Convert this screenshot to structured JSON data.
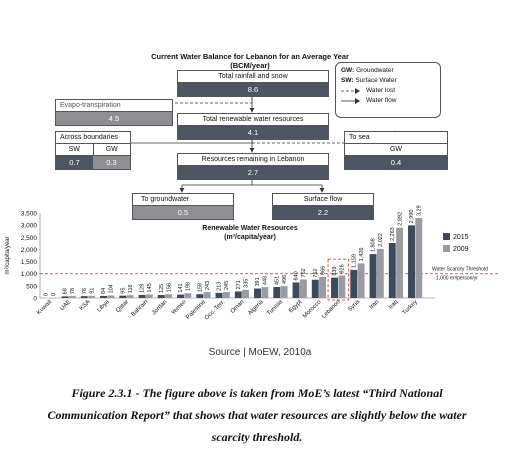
{
  "diagram": {
    "title_line1": "Current Water Balance for Lebanon for an Average Year",
    "title_line2": "(BCM/year)",
    "total_rainfall": {
      "label": "Total rainfall and snow",
      "value": "8.6"
    },
    "evapo": {
      "label": "Evapo-transpiration",
      "value": "4.5"
    },
    "renewable": {
      "label": "Total renewable water resources",
      "value": "4.1"
    },
    "across": {
      "label": "Across boundaries",
      "sw_label": "SW",
      "gw_label": "GW",
      "sw_value": "0.7",
      "gw_value": "0.3"
    },
    "to_sea": {
      "label": "To sea",
      "gw_label": "GW",
      "value": "0.4"
    },
    "remaining": {
      "label": "Resources remaining in Lebanon",
      "value": "2.7"
    },
    "groundwater": {
      "label": "To groundwater",
      "value": "0.5"
    },
    "surface": {
      "label": "Surface flow",
      "value": "2.2"
    }
  },
  "legend": {
    "gw_abbr": "GW:",
    "gw_text": "Groundwater",
    "sw_abbr": "SW:",
    "sw_text": "Surface Water",
    "water_lost": "Water lost",
    "water_flow": "Water flow"
  },
  "chart_data": {
    "type": "bar",
    "title_line1": "Renewable Water Resources",
    "title_line2": "(m³/capita/year)",
    "ylabel": "m³/capita/year",
    "ylim": [
      0,
      3500
    ],
    "yticks": [
      "0",
      "500",
      "1,000",
      "1,500",
      "2,000",
      "2,500",
      "3,000",
      "3,500"
    ],
    "categories": [
      "Kuwait",
      "UAE",
      "KSA",
      "Libya",
      "Qatar",
      "Bahrain",
      "Jordan",
      "Yemen",
      "Palestine",
      "Occ. Terr.",
      "Oman",
      "Algeria",
      "Tunisia",
      "Egypt",
      "Morocco",
      "Lebanon",
      "Syria",
      "Iran",
      "Iraq",
      "Turkey"
    ],
    "series": [
      {
        "name": "2015",
        "color": "#3d4a5c",
        "values": [
          0,
          68,
          76,
          84,
          95,
          128,
          125,
          141,
          158,
          213,
          271,
          391,
          451,
          640,
          752,
          839,
          1159,
          1808,
          2263,
          2990
        ],
        "labels": [
          "0",
          "68",
          "76",
          "84",
          "95",
          "128",
          "125",
          "141",
          "158",
          "213",
          "271",
          "391",
          "451",
          "640",
          "752",
          "839",
          "1,159",
          "1,808",
          "2,263",
          "2,990"
        ]
      },
      {
        "name": "2009",
        "color": "#9a9ca3",
        "values": [
          0,
          78,
          91,
          104,
          116,
          145,
          156,
          198,
          243,
          245,
          335,
          448,
          496,
          762,
          866,
          926,
          1426,
          2022,
          2892,
          3292
        ],
        "labels": [
          "0",
          "78",
          "91",
          "104",
          "116",
          "145",
          "156",
          "198",
          "243",
          "245",
          "335",
          "448",
          "496",
          "762",
          "866",
          "926",
          "1,426",
          "2,022",
          "2,892",
          "3,292"
        ]
      }
    ],
    "threshold": {
      "value": 1000,
      "label1": "Water Scarcity Threshold",
      "label2": "1,000 m³/person/yr",
      "color": "#d42a1e"
    },
    "highlight": "Lebanon",
    "legend_placement": "right"
  },
  "source": "Source | MoEW, 2010a",
  "caption_line1": "Figure 2.3.1 - The figure above is taken from MoE’s latest “Third National",
  "caption_line2": "Communication Report” that shows that water resources are slightly below the water",
  "caption_line3": "scarcity threshold."
}
